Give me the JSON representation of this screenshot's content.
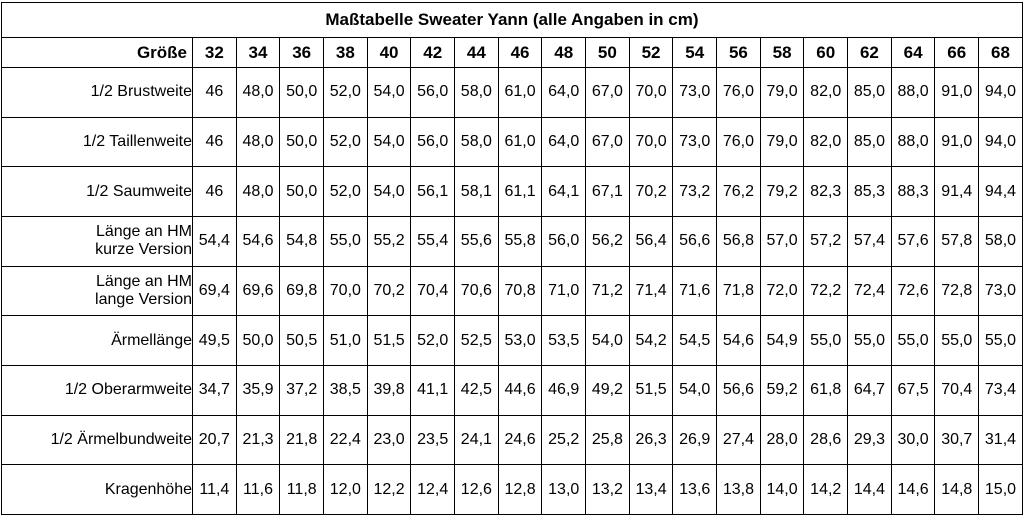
{
  "title": "Maßtabelle Sweater Yann (alle Angaben in cm)",
  "header_label": "Größe",
  "sizes": [
    "32",
    "34",
    "36",
    "38",
    "40",
    "42",
    "44",
    "46",
    "48",
    "50",
    "52",
    "54",
    "56",
    "58",
    "60",
    "62",
    "64",
    "66",
    "68"
  ],
  "rows": [
    {
      "label": [
        "1/2 Brustweite"
      ],
      "values": [
        "46",
        "48,0",
        "50,0",
        "52,0",
        "54,0",
        "56,0",
        "58,0",
        "61,0",
        "64,0",
        "67,0",
        "70,0",
        "73,0",
        "76,0",
        "79,0",
        "82,0",
        "85,0",
        "88,0",
        "91,0",
        "94,0"
      ]
    },
    {
      "label": [
        "1/2 Taillenweite"
      ],
      "values": [
        "46",
        "48,0",
        "50,0",
        "52,0",
        "54,0",
        "56,0",
        "58,0",
        "61,0",
        "64,0",
        "67,0",
        "70,0",
        "73,0",
        "76,0",
        "79,0",
        "82,0",
        "85,0",
        "88,0",
        "91,0",
        "94,0"
      ]
    },
    {
      "label": [
        "1/2 Saumweite"
      ],
      "values": [
        "46",
        "48,0",
        "50,0",
        "52,0",
        "54,0",
        "56,1",
        "58,1",
        "61,1",
        "64,1",
        "67,1",
        "70,2",
        "73,2",
        "76,2",
        "79,2",
        "82,3",
        "85,3",
        "88,3",
        "91,4",
        "94,4"
      ]
    },
    {
      "label": [
        "Länge an HM",
        "kurze Version"
      ],
      "values": [
        "54,4",
        "54,6",
        "54,8",
        "55,0",
        "55,2",
        "55,4",
        "55,6",
        "55,8",
        "56,0",
        "56,2",
        "56,4",
        "56,6",
        "56,8",
        "57,0",
        "57,2",
        "57,4",
        "57,6",
        "57,8",
        "58,0"
      ]
    },
    {
      "label": [
        "Länge an HM",
        "lange Version"
      ],
      "values": [
        "69,4",
        "69,6",
        "69,8",
        "70,0",
        "70,2",
        "70,4",
        "70,6",
        "70,8",
        "71,0",
        "71,2",
        "71,4",
        "71,6",
        "71,8",
        "72,0",
        "72,2",
        "72,4",
        "72,6",
        "72,8",
        "73,0"
      ]
    },
    {
      "label": [
        "Ärmellänge"
      ],
      "values": [
        "49,5",
        "50,0",
        "50,5",
        "51,0",
        "51,5",
        "52,0",
        "52,5",
        "53,0",
        "53,5",
        "54,0",
        "54,2",
        "54,5",
        "54,6",
        "54,9",
        "55,0",
        "55,0",
        "55,0",
        "55,0",
        "55,0"
      ]
    },
    {
      "label": [
        "1/2 Oberarmweite"
      ],
      "values": [
        "34,7",
        "35,9",
        "37,2",
        "38,5",
        "39,8",
        "41,1",
        "42,5",
        "44,6",
        "46,9",
        "49,2",
        "51,5",
        "54,0",
        "56,6",
        "59,2",
        "61,8",
        "64,7",
        "67,5",
        "70,4",
        "73,4"
      ]
    },
    {
      "label": [
        "1/2 Ärmelbundweite"
      ],
      "values": [
        "20,7",
        "21,3",
        "21,8",
        "22,4",
        "23,0",
        "23,5",
        "24,1",
        "24,6",
        "25,2",
        "25,8",
        "26,3",
        "26,9",
        "27,4",
        "28,0",
        "28,6",
        "29,3",
        "30,0",
        "30,7",
        "31,4"
      ]
    },
    {
      "label": [
        "Kragenhöhe"
      ],
      "values": [
        "11,4",
        "11,6",
        "11,8",
        "12,0",
        "12,2",
        "12,4",
        "12,6",
        "12,8",
        "13,0",
        "13,2",
        "13,4",
        "13,6",
        "13,8",
        "14,0",
        "14,2",
        "14,4",
        "14,6",
        "14,8",
        "15,0"
      ]
    }
  ]
}
